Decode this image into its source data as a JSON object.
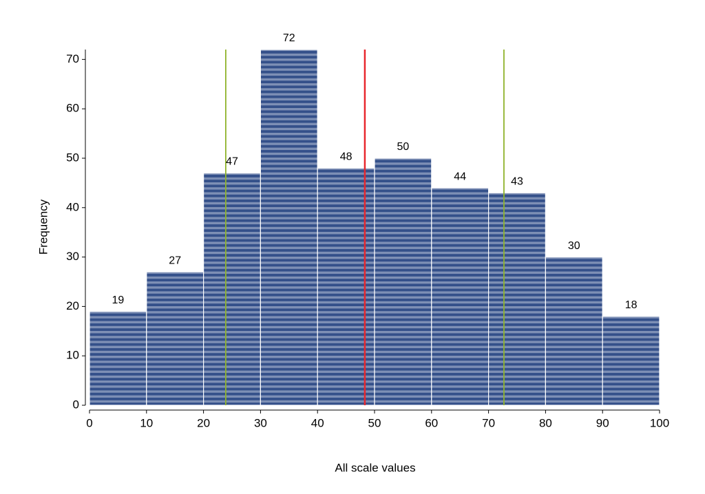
{
  "chart_data": {
    "type": "histogram",
    "bins": [
      0,
      10,
      20,
      30,
      40,
      50,
      60,
      70,
      80,
      90,
      100
    ],
    "values": [
      19,
      27,
      47,
      72,
      48,
      50,
      44,
      43,
      30,
      18
    ],
    "color": "#34508a",
    "stripe_color": "#7d8fb5",
    "xlabel": "All scale values",
    "ylabel": "Frequency",
    "xlim": [
      0,
      100
    ],
    "xticks": [
      0,
      10,
      20,
      30,
      40,
      50,
      60,
      70,
      80,
      90,
      100
    ],
    "ylim": [
      0,
      72
    ],
    "yticks": [
      0,
      10,
      20,
      30,
      40,
      50,
      60,
      70
    ],
    "reference_lines": [
      {
        "value": 23.9,
        "color": "#8fb32a"
      },
      {
        "value": 48.3,
        "color": "#e8262c"
      },
      {
        "value": 72.7,
        "color": "#8fb32a"
      }
    ]
  }
}
